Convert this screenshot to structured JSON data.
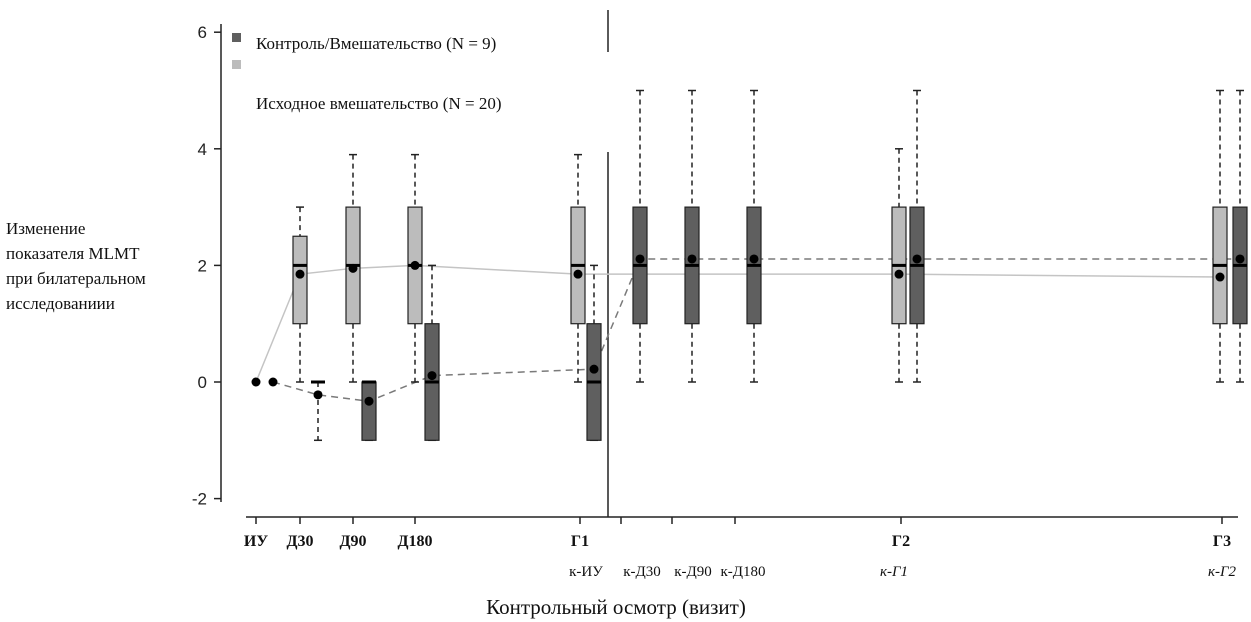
{
  "chart_data": {
    "type": "box",
    "title": "",
    "xlabel": "Контрольный осмотр (визит)",
    "ylabel_lines": [
      "Изменение",
      "показателя MLMT",
      "при билатеральном",
      "исследованиии"
    ],
    "ylim": [
      -2.3,
      6.1
    ],
    "yticks": [
      "-2",
      "0",
      "2",
      "4",
      "6"
    ],
    "ytick_values": [
      -2,
      0,
      2,
      4,
      6
    ],
    "x_ticks": [
      {
        "id": "iu",
        "label": "ИУ",
        "sub": ""
      },
      {
        "id": "d30",
        "label": "Д30",
        "sub": ""
      },
      {
        "id": "d90",
        "label": "Д90",
        "sub": ""
      },
      {
        "id": "d180",
        "label": "Д180",
        "sub": ""
      },
      {
        "id": "g1",
        "label": "Г1",
        "sub": "к-ИУ"
      },
      {
        "id": "kd30",
        "label": "",
        "sub": "к-Д30"
      },
      {
        "id": "kd90",
        "label": "",
        "sub": "к-Д90"
      },
      {
        "id": "kd180",
        "label": "",
        "sub": "к-Д180"
      },
      {
        "id": "g2",
        "label": "Г2",
        "sub": "к-Г1"
      },
      {
        "id": "g3",
        "label": "Г3",
        "sub": "к-Г2"
      }
    ],
    "legend": {
      "position": "top-left",
      "entries": [
        {
          "label": "Контроль/Вмешательство (N = 9)",
          "color": "#5f5f5f"
        },
        {
          "label": "Исходное вмешательство (N = 20)",
          "color": "#bcbcbc"
        }
      ]
    },
    "series": [
      {
        "name": "Исходное вмешательство (N = 20)",
        "color": "#bcbcbc",
        "mean_line": "solid",
        "boxes": [
          {
            "visit": "iu",
            "q1": 0,
            "median": 0,
            "q3": 0,
            "min": 0,
            "max": 0,
            "mean": 0,
            "box": false
          },
          {
            "visit": "d30",
            "q1": 1,
            "median": 2,
            "q3": 2.5,
            "min": 0,
            "max": 3,
            "mean": 1.85,
            "box": true
          },
          {
            "visit": "d90",
            "q1": 1,
            "median": 2,
            "q3": 3,
            "min": 0,
            "max": 3.9,
            "mean": 1.95,
            "box": true
          },
          {
            "visit": "d180",
            "q1": 1,
            "median": 2,
            "q3": 3,
            "min": 0,
            "max": 3.9,
            "mean": 2.0,
            "box": true
          },
          {
            "visit": "g1",
            "q1": 1,
            "median": 2,
            "q3": 3,
            "min": 0,
            "max": 3.9,
            "mean": 1.85,
            "box": true
          },
          {
            "visit": "g2",
            "q1": 1,
            "median": 2,
            "q3": 3,
            "min": 0,
            "max": 4,
            "mean": 1.85,
            "box": true
          },
          {
            "visit": "g3",
            "q1": 1,
            "median": 2,
            "q3": 3,
            "min": 0,
            "max": 5,
            "mean": 1.8,
            "box": true
          }
        ]
      },
      {
        "name": "Контроль/Вмешательство (N = 9)",
        "color": "#5f5f5f",
        "mean_line": "dashed",
        "boxes": [
          {
            "visit": "iu",
            "q1": 0,
            "median": 0,
            "q3": 0,
            "min": 0,
            "max": 0,
            "mean": 0,
            "box": false
          },
          {
            "visit": "d30",
            "q1": 0,
            "median": 0,
            "q3": 0,
            "min": -1,
            "max": 0,
            "mean": -0.22,
            "box": false
          },
          {
            "visit": "d90",
            "q1": -1,
            "median": 0,
            "q3": 0,
            "min": -1,
            "max": 0,
            "mean": -0.33,
            "box": true
          },
          {
            "visit": "d180",
            "q1": -1,
            "median": 0,
            "q3": 1,
            "min": -1,
            "max": 2,
            "mean": 0.11,
            "box": true
          },
          {
            "visit": "g1",
            "q1": -1,
            "median": 0,
            "q3": 1,
            "min": -1,
            "max": 2,
            "mean": 0.22,
            "box": true
          },
          {
            "visit": "kd30",
            "q1": 1,
            "median": 2,
            "q3": 3,
            "min": 0,
            "max": 5,
            "mean": 2.11,
            "box": true
          },
          {
            "visit": "kd90",
            "q1": 1,
            "median": 2,
            "q3": 3,
            "min": 0,
            "max": 5,
            "mean": 2.11,
            "box": true
          },
          {
            "visit": "kd180",
            "q1": 1,
            "median": 2,
            "q3": 3,
            "min": 0,
            "max": 5,
            "mean": 2.11,
            "box": true
          },
          {
            "visit": "g2",
            "q1": 1,
            "median": 2,
            "q3": 3,
            "min": 0,
            "max": 5,
            "mean": 2.11,
            "box": true
          },
          {
            "visit": "g3",
            "q1": 1,
            "median": 2,
            "q3": 3,
            "min": 0,
            "max": 5,
            "mean": 2.11,
            "box": true
          }
        ]
      }
    ],
    "grid": false
  }
}
